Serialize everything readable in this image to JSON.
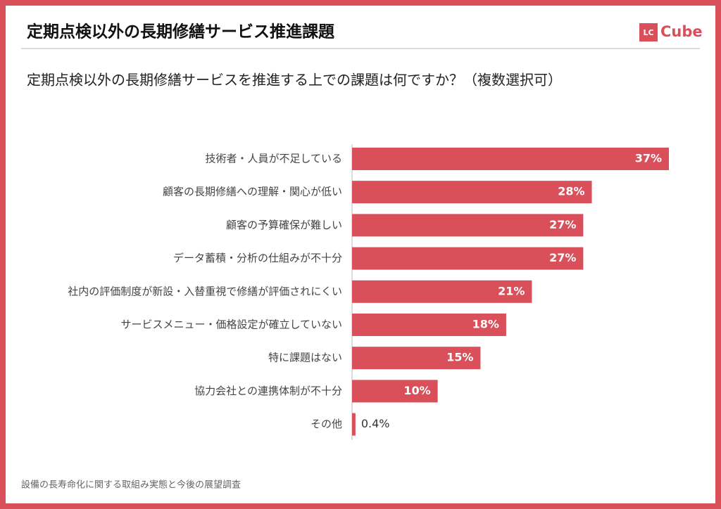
{
  "chart_data": {
    "type": "bar",
    "orientation": "horizontal",
    "title": "定期点検以外の長期修繕サービス推進課題",
    "logo": {
      "mark": "LC",
      "text": "Cube"
    },
    "subtitle": "定期点検以外の長期修繕サービスを推進する上での課題は何ですか？（複数選択可）",
    "source": "設備の長寿命化に関する取組み実態と今後の展望調査",
    "categories": [
      "技術者・人員が不足している",
      "顧客の長期修繕への理解・関心が低い",
      "顧客の予算確保が難しい",
      "データ蓄積・分析の仕組みが不十分",
      "社内の評価制度が新設・入替重視で修繕が評価されにくい",
      "サービスメニュー・価格設定が確立していない",
      "特に課題はない",
      "協力会社との連携体制が不十分",
      "その他"
    ],
    "values": [
      37,
      28,
      27,
      27,
      21,
      18,
      15,
      10,
      0.4
    ],
    "value_labels": [
      "37%",
      "28%",
      "27%",
      "27%",
      "21%",
      "18%",
      "15%",
      "10%",
      "0.4%"
    ],
    "color": "#d9505a"
  }
}
